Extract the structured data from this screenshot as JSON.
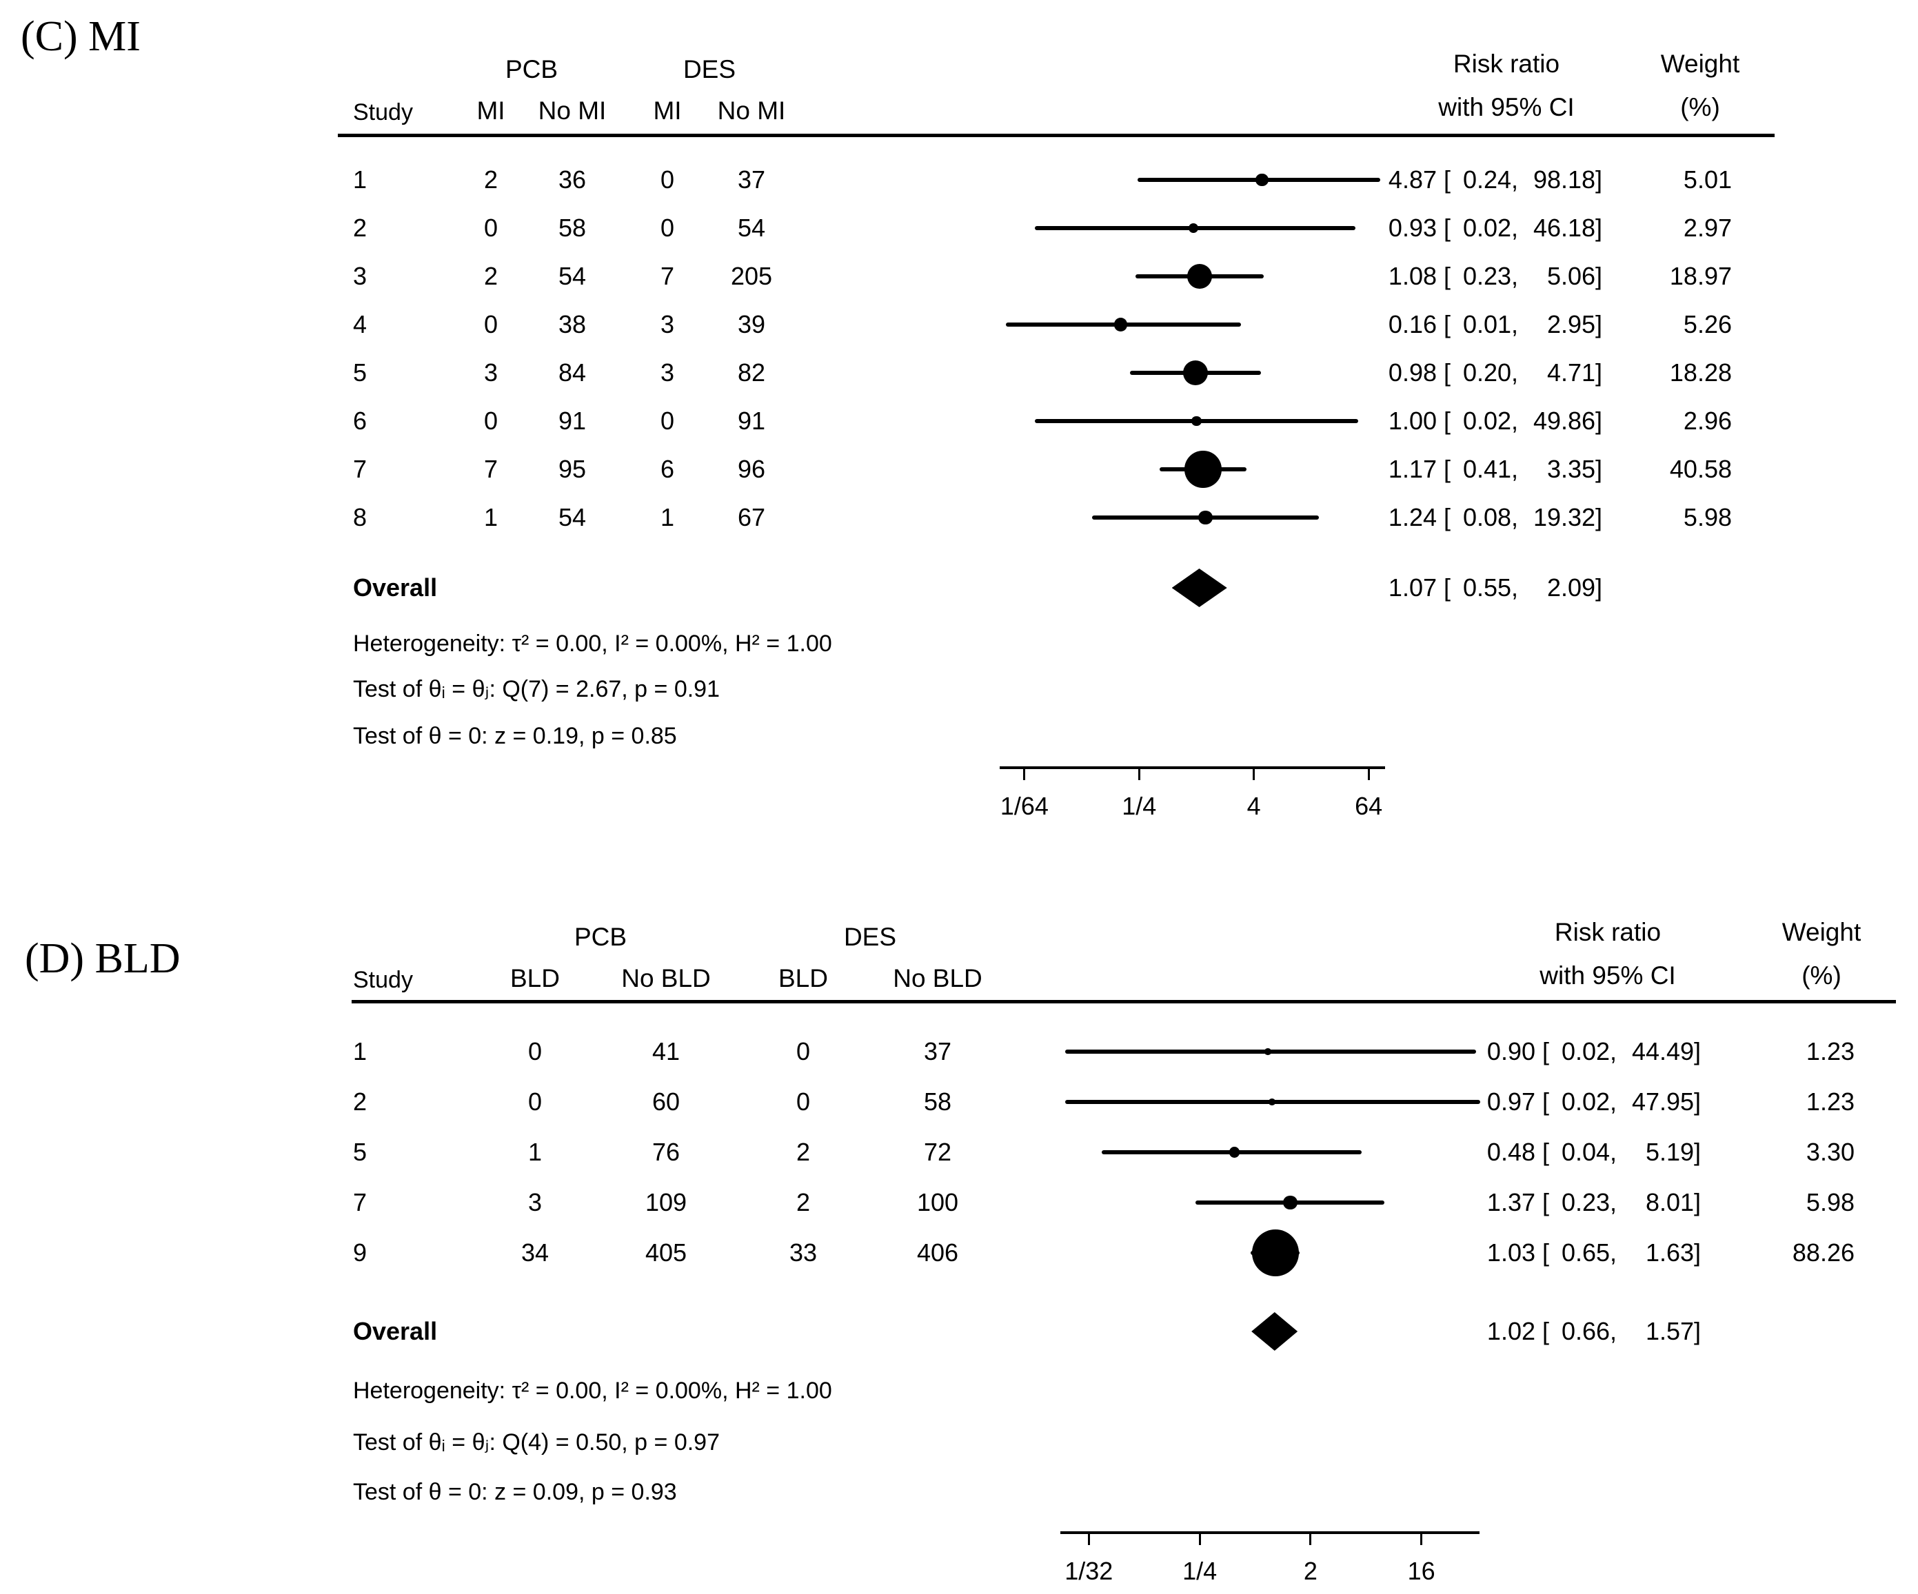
{
  "chart_data": [
    {
      "type": "forest",
      "panel_label": "(C) MI",
      "outcome": "MI",
      "xscale": "log",
      "legend_position": "none",
      "group1": "PCB",
      "group2": "DES",
      "study_header": "Study",
      "event_headers": [
        "MI",
        "No MI",
        "MI",
        "No MI"
      ],
      "risk_header_line1": "Risk ratio",
      "risk_header_line2": "with 95% CI",
      "weight_header_line1": "Weight",
      "weight_header_line2": "(%)",
      "overall_label": "Overall",
      "overall": {
        "est": "1.07",
        "lo": "0.55",
        "hi": "2.09"
      },
      "stats": [
        "Heterogeneity: τ² = 0.00, I² = 0.00%, H² = 1.00",
        "Test of θᵢ = θⱼ: Q(7) = 2.67, p = 0.91",
        "Test of θ = 0: z = 0.19, p = 0.85"
      ],
      "axis_ticks": [
        {
          "label": "1/64",
          "value": 0.015625
        },
        {
          "label": "1/4",
          "value": 0.25
        },
        {
          "label": "4",
          "value": 4
        },
        {
          "label": "64",
          "value": 64
        }
      ],
      "rows": [
        {
          "study": "1",
          "g1e": "2",
          "g1n": "36",
          "g2e": "0",
          "g2n": "37",
          "est": "4.87",
          "lo": "0.24",
          "hi": "98.18",
          "weight": "5.01"
        },
        {
          "study": "2",
          "g1e": "0",
          "g1n": "58",
          "g2e": "0",
          "g2n": "54",
          "est": "0.93",
          "lo": "0.02",
          "hi": "46.18",
          "weight": "2.97"
        },
        {
          "study": "3",
          "g1e": "2",
          "g1n": "54",
          "g2e": "7",
          "g2n": "205",
          "est": "1.08",
          "lo": "0.23",
          "hi": "5.06",
          "weight": "18.97"
        },
        {
          "study": "4",
          "g1e": "0",
          "g1n": "38",
          "g2e": "3",
          "g2n": "39",
          "est": "0.16",
          "lo": "0.01",
          "hi": "2.95",
          "weight": "5.26"
        },
        {
          "study": "5",
          "g1e": "3",
          "g1n": "84",
          "g2e": "3",
          "g2n": "82",
          "est": "0.98",
          "lo": "0.20",
          "hi": "4.71",
          "weight": "18.28"
        },
        {
          "study": "6",
          "g1e": "0",
          "g1n": "91",
          "g2e": "0",
          "g2n": "91",
          "est": "1.00",
          "lo": "0.02",
          "hi": "49.86",
          "weight": "2.96"
        },
        {
          "study": "7",
          "g1e": "7",
          "g1n": "95",
          "g2e": "6",
          "g2n": "96",
          "est": "1.17",
          "lo": "0.41",
          "hi": "3.35",
          "weight": "40.58"
        },
        {
          "study": "8",
          "g1e": "1",
          "g1n": "54",
          "g2e": "1",
          "g2n": "67",
          "est": "1.24",
          "lo": "0.08",
          "hi": "19.32",
          "weight": "5.98"
        }
      ]
    },
    {
      "type": "forest",
      "panel_label": "(D) BLD",
      "outcome": "BLD",
      "xscale": "log",
      "legend_position": "none",
      "group1": "PCB",
      "group2": "DES",
      "study_header": "Study",
      "event_headers": [
        "BLD",
        "No BLD",
        "BLD",
        "No BLD"
      ],
      "risk_header_line1": "Risk ratio",
      "risk_header_line2": "with 95% CI",
      "weight_header_line1": "Weight",
      "weight_header_line2": "(%)",
      "overall_label": "Overall",
      "overall": {
        "est": "1.02",
        "lo": "0.66",
        "hi": "1.57"
      },
      "stats": [
        "Heterogeneity: τ² = 0.00, I² = 0.00%, H² = 1.00",
        "Test of θᵢ = θⱼ: Q(4) = 0.50, p = 0.97",
        "Test of θ = 0: z = 0.09, p = 0.93"
      ],
      "axis_ticks": [
        {
          "label": "1/32",
          "value": 0.03125
        },
        {
          "label": "1/4",
          "value": 0.25
        },
        {
          "label": "2",
          "value": 2
        },
        {
          "label": "16",
          "value": 16
        }
      ],
      "rows": [
        {
          "study": "1",
          "g1e": "0",
          "g1n": "41",
          "g2e": "0",
          "g2n": "37",
          "est": "0.90",
          "lo": "0.02",
          "hi": "44.49",
          "weight": "1.23"
        },
        {
          "study": "2",
          "g1e": "0",
          "g1n": "60",
          "g2e": "0",
          "g2n": "58",
          "est": "0.97",
          "lo": "0.02",
          "hi": "47.95",
          "weight": "1.23"
        },
        {
          "study": "5",
          "g1e": "1",
          "g1n": "76",
          "g2e": "2",
          "g2n": "72",
          "est": "0.48",
          "lo": "0.04",
          "hi": "5.19",
          "weight": "3.30"
        },
        {
          "study": "7",
          "g1e": "3",
          "g1n": "109",
          "g2e": "2",
          "g2n": "100",
          "est": "1.37",
          "lo": "0.23",
          "hi": "8.01",
          "weight": "5.98"
        },
        {
          "study": "9",
          "g1e": "34",
          "g1n": "405",
          "g2e": "33",
          "g2n": "406",
          "est": "1.03",
          "lo": "0.65",
          "hi": "1.63",
          "weight": "88.26"
        }
      ]
    }
  ]
}
